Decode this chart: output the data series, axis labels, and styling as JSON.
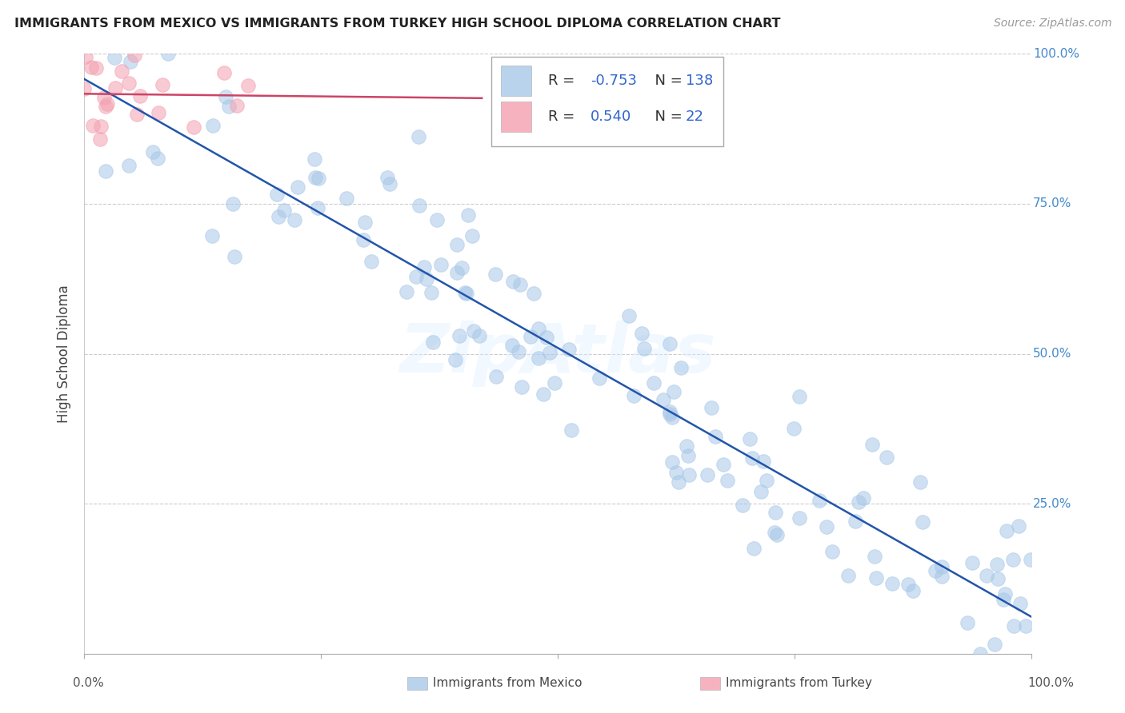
{
  "title": "IMMIGRANTS FROM MEXICO VS IMMIGRANTS FROM TURKEY HIGH SCHOOL DIPLOMA CORRELATION CHART",
  "source": "Source: ZipAtlas.com",
  "ylabel": "High School Diploma",
  "legend_mexico": "Immigrants from Mexico",
  "legend_turkey": "Immigrants from Turkey",
  "R_mexico": -0.753,
  "N_mexico": 138,
  "R_turkey": 0.54,
  "N_turkey": 22,
  "color_mexico": "#A8C8E8",
  "color_turkey": "#F4A0B0",
  "line_color_mexico": "#2255AA",
  "line_color_turkey": "#CC4466",
  "background_color": "#FFFFFF",
  "watermark": "ZipAtlas",
  "figsize": [
    14.06,
    8.92
  ],
  "dpi": 100,
  "seed_mexico": 42,
  "seed_turkey": 77
}
